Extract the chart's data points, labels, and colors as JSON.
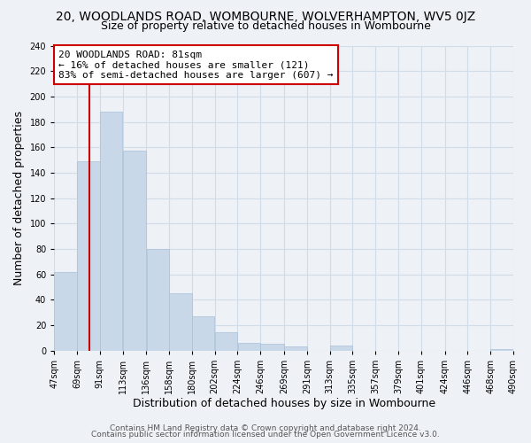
{
  "title_line1": "20, WOODLANDS ROAD, WOMBOURNE, WOLVERHAMPTON, WV5 0JZ",
  "title_line2": "Size of property relative to detached houses in Wombourne",
  "xlabel": "Distribution of detached houses by size in Wombourne",
  "ylabel": "Number of detached properties",
  "bar_left_edges": [
    47,
    69,
    91,
    113,
    136,
    158,
    180,
    202,
    224,
    246,
    269,
    291,
    313,
    335,
    357,
    379,
    401,
    424,
    446,
    468
  ],
  "bar_heights": [
    62,
    149,
    188,
    157,
    80,
    45,
    27,
    14,
    6,
    5,
    3,
    0,
    4,
    0,
    0,
    0,
    0,
    0,
    0,
    1
  ],
  "bar_widths": [
    22,
    22,
    22,
    23,
    22,
    22,
    22,
    22,
    22,
    23,
    22,
    22,
    22,
    22,
    22,
    22,
    23,
    22,
    22,
    22
  ],
  "bar_color": "#c8d8e8",
  "bar_edgecolor": "#a8c0d8",
  "vline_x": 81,
  "vline_color": "#cc0000",
  "xlim": [
    47,
    490
  ],
  "ylim": [
    0,
    240
  ],
  "yticks": [
    0,
    20,
    40,
    60,
    80,
    100,
    120,
    140,
    160,
    180,
    200,
    220,
    240
  ],
  "xtick_labels": [
    "47sqm",
    "69sqm",
    "91sqm",
    "113sqm",
    "136sqm",
    "158sqm",
    "180sqm",
    "202sqm",
    "224sqm",
    "246sqm",
    "269sqm",
    "291sqm",
    "313sqm",
    "335sqm",
    "357sqm",
    "379sqm",
    "401sqm",
    "424sqm",
    "446sqm",
    "468sqm",
    "490sqm"
  ],
  "xtick_positions": [
    47,
    69,
    91,
    113,
    136,
    158,
    180,
    202,
    224,
    246,
    269,
    291,
    313,
    335,
    357,
    379,
    401,
    424,
    446,
    468,
    490
  ],
  "annotation_title": "20 WOODLANDS ROAD: 81sqm",
  "annotation_line1": "← 16% of detached houses are smaller (121)",
  "annotation_line2": "83% of semi-detached houses are larger (607) →",
  "grid_color": "#d0dce8",
  "footer_line1": "Contains HM Land Registry data © Crown copyright and database right 2024.",
  "footer_line2": "Contains public sector information licensed under the Open Government Licence v3.0.",
  "background_color": "#eef2f7",
  "title_fontsize": 10,
  "subtitle_fontsize": 9,
  "axis_label_fontsize": 9,
  "tick_fontsize": 7,
  "footer_fontsize": 6.5,
  "annotation_fontsize": 8
}
